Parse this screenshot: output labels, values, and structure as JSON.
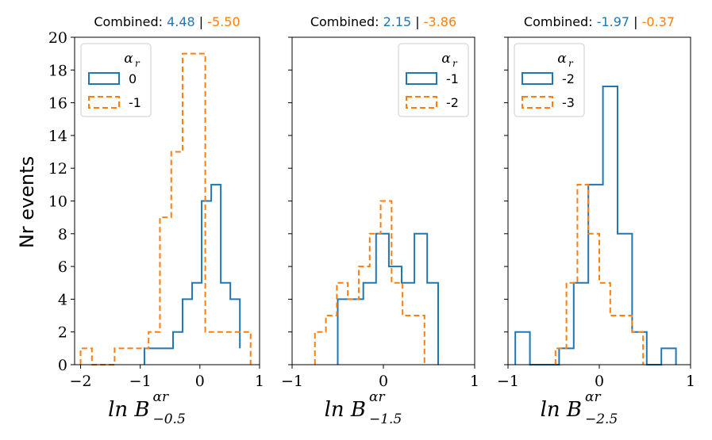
{
  "colors": {
    "blue": "#1f77b4",
    "orange": "#ff7f0e",
    "axis": "#000000",
    "legend_border": "#cccccc"
  },
  "ylabel": "Nr events",
  "chart_data": [
    {
      "type": "histogram",
      "title_prefix": "Combined:",
      "title_value_1": "4.48",
      "title_separator": "|",
      "title_value_2": "-5.50",
      "xlabel_base": "ln B",
      "xlabel_sup": "αr",
      "xlabel_sub": "−0.5",
      "xlim": [
        -2.1,
        1.0
      ],
      "ylim": [
        0,
        20
      ],
      "xticks": [
        -2,
        -1,
        0,
        1
      ],
      "xtick_labels": [
        "−2",
        "−1",
        "0",
        "1"
      ],
      "yticks": [
        0,
        2,
        4,
        6,
        8,
        10,
        12,
        14,
        16,
        18,
        20
      ],
      "legend": {
        "title": "α",
        "title_sub": "r",
        "loc": "upper left"
      },
      "series": [
        {
          "name": "0",
          "color": "blue",
          "style": "solid",
          "edges": [
            -0.93,
            -0.77,
            -0.61,
            -0.45,
            -0.29,
            -0.13,
            0.03,
            0.19,
            0.35,
            0.51,
            0.67
          ],
          "counts": [
            1,
            1,
            1,
            2,
            4,
            5,
            10,
            11,
            5,
            4,
            1
          ]
        },
        {
          "name": "-1",
          "color": "orange",
          "style": "dashed",
          "edges": [
            -2.0,
            -1.81,
            -1.62,
            -1.43,
            -1.24,
            -1.05,
            -0.86,
            -0.67,
            -0.48,
            -0.29,
            -0.1,
            0.09,
            0.28,
            0.47,
            0.66,
            0.85
          ],
          "counts": [
            1,
            0,
            0,
            1,
            1,
            1,
            2,
            9,
            13,
            19,
            19,
            2,
            2,
            2,
            2
          ]
        }
      ]
    },
    {
      "type": "histogram",
      "title_prefix": "Combined:",
      "title_value_1": "2.15",
      "title_separator": "|",
      "title_value_2": "-3.86",
      "xlabel_base": "ln B",
      "xlabel_sup": "αr",
      "xlabel_sub": "−1.5",
      "xlim": [
        -1.0,
        1.0
      ],
      "ylim": [
        0,
        20
      ],
      "xticks": [
        -1,
        0,
        1
      ],
      "xtick_labels": [
        "−1",
        "0",
        "1"
      ],
      "legend": {
        "title": "α",
        "title_sub": "r",
        "loc": "upper right"
      },
      "series": [
        {
          "name": "-1",
          "color": "blue",
          "style": "solid",
          "edges": [
            -0.5,
            -0.36,
            -0.22,
            -0.08,
            0.06,
            0.2,
            0.34,
            0.48,
            0.6
          ],
          "counts": [
            4,
            4,
            5,
            8,
            6,
            5,
            8,
            5
          ]
        },
        {
          "name": "-2",
          "color": "orange",
          "style": "dashed",
          "edges": [
            -0.75,
            -0.63,
            -0.51,
            -0.39,
            -0.27,
            -0.15,
            -0.03,
            0.09,
            0.21,
            0.33,
            0.45
          ],
          "counts": [
            2,
            3,
            5,
            4,
            6,
            8,
            10,
            5,
            3,
            3
          ]
        }
      ]
    },
    {
      "type": "histogram",
      "title_prefix": "Combined:",
      "title_value_1": "-1.97",
      "title_separator": "|",
      "title_value_2": "-0.37",
      "xlabel_base": "ln B",
      "xlabel_sup": "αr",
      "xlabel_sub": "−2.5",
      "xlim": [
        -1.0,
        1.0
      ],
      "ylim": [
        0,
        20
      ],
      "xticks": [
        -1,
        0,
        1
      ],
      "xtick_labels": [
        "−1",
        "0",
        "1"
      ],
      "legend": {
        "title": "α",
        "title_sub": "r",
        "loc": "upper left"
      },
      "series": [
        {
          "name": "-2",
          "color": "blue",
          "style": "solid",
          "edges": [
            -0.92,
            -0.76,
            -0.6,
            -0.44,
            -0.28,
            -0.12,
            0.04,
            0.2,
            0.36,
            0.52,
            0.68,
            0.84
          ],
          "counts": [
            2,
            0,
            0,
            1,
            5,
            11,
            17,
            8,
            2,
            0,
            1
          ]
        },
        {
          "name": "-3",
          "color": "orange",
          "style": "dashed",
          "edges": [
            -0.48,
            -0.36,
            -0.24,
            -0.12,
            0.0,
            0.12,
            0.24,
            0.36,
            0.48
          ],
          "counts": [
            1,
            5,
            11,
            8,
            5,
            3,
            3,
            2
          ]
        }
      ]
    }
  ]
}
